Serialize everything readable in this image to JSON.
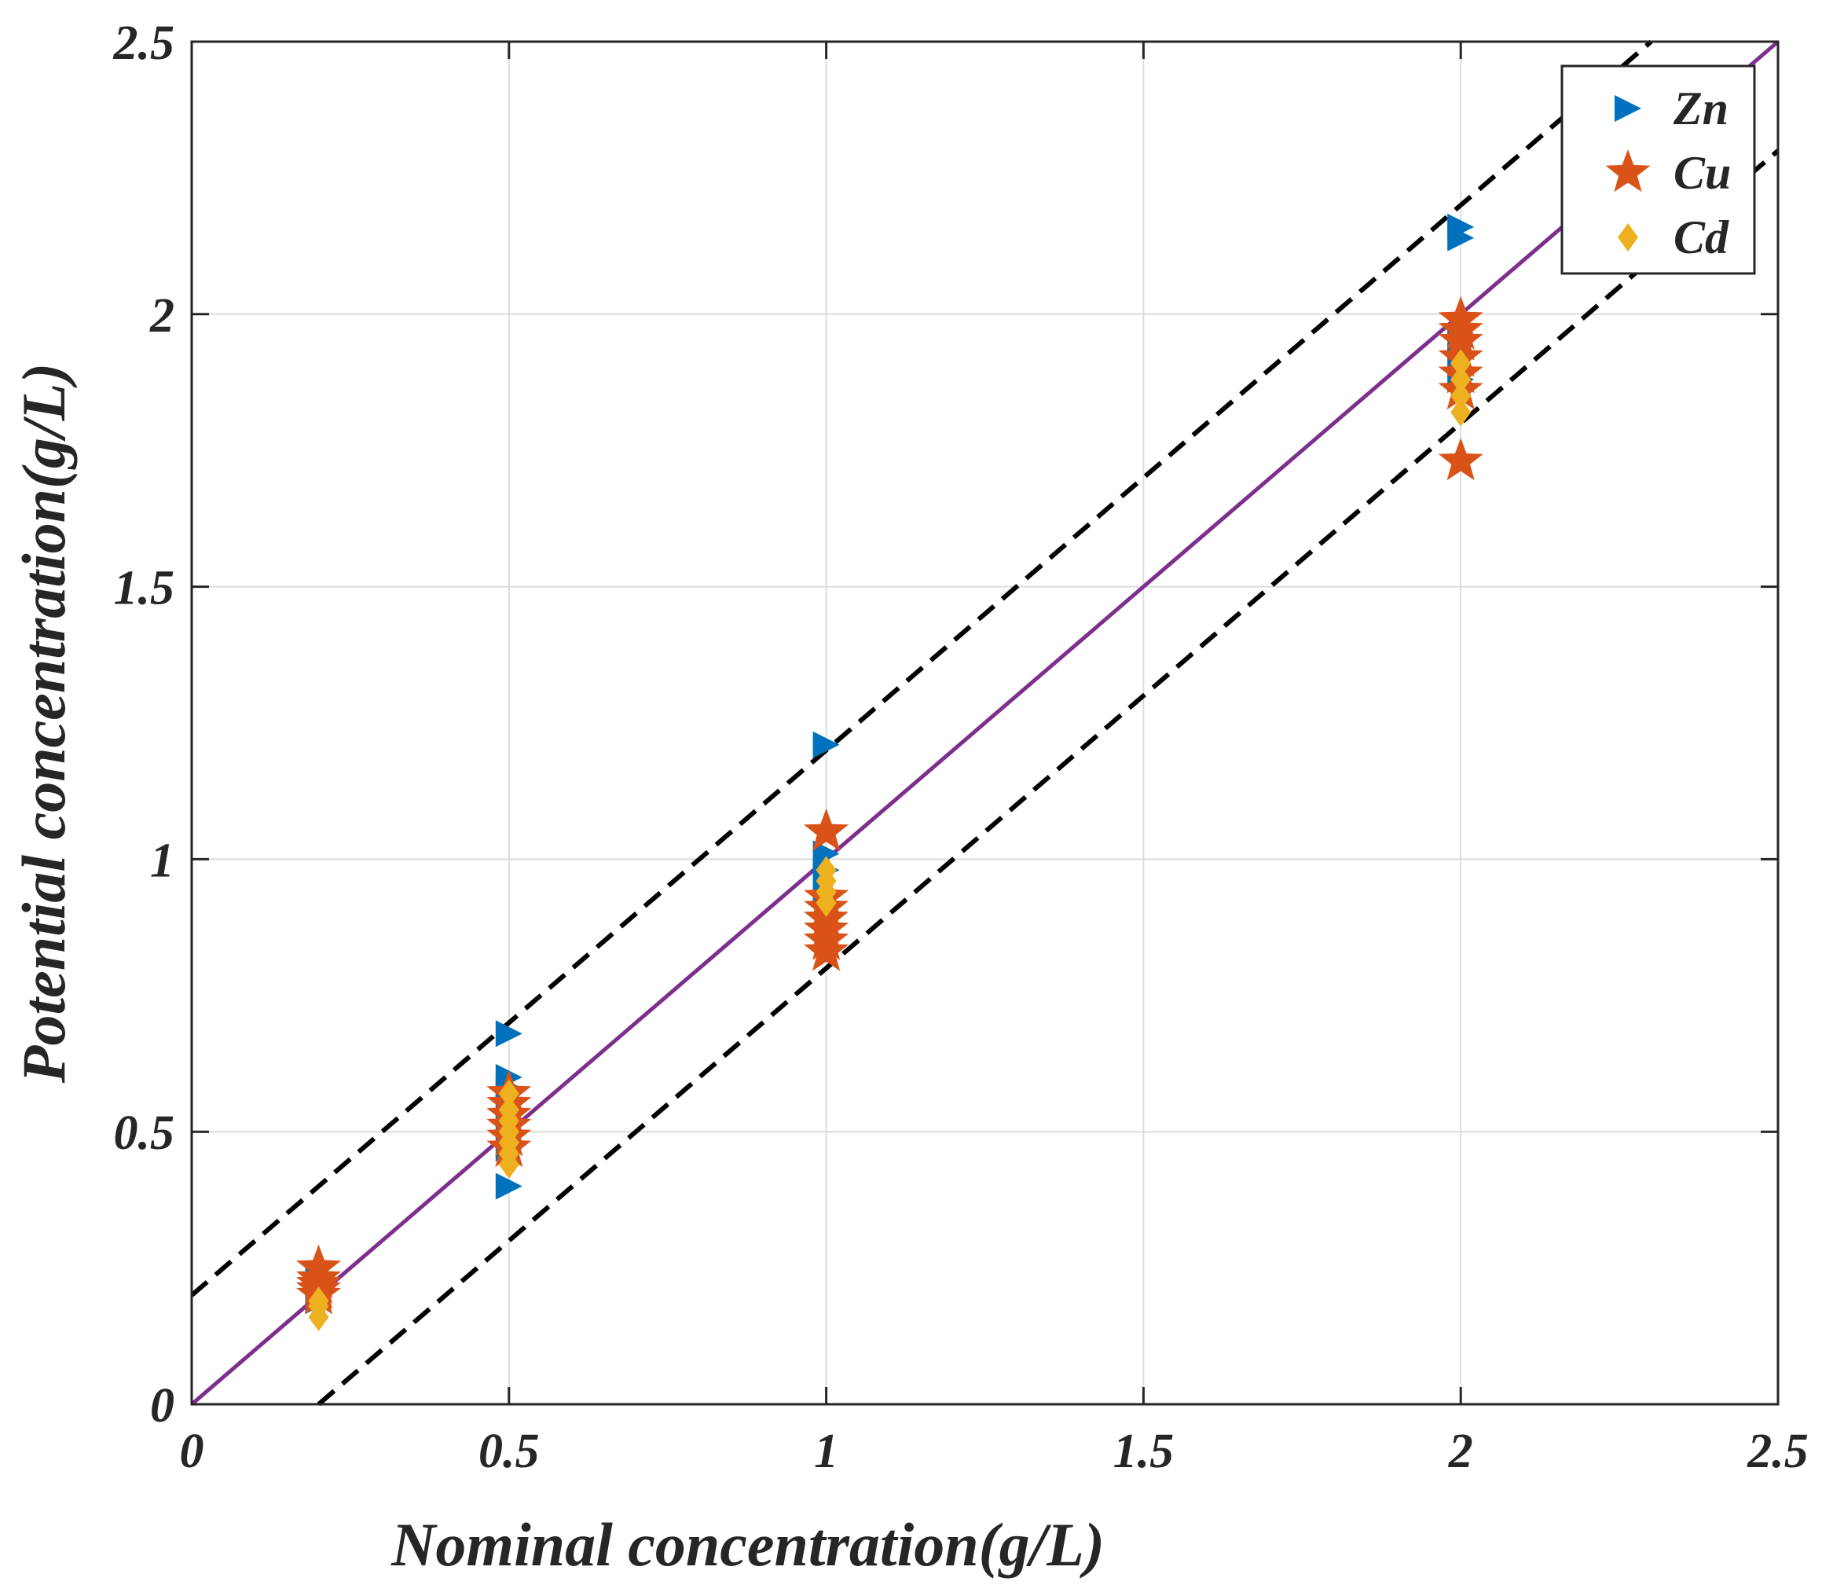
{
  "chart_data": {
    "type": "scatter",
    "title": "",
    "xlabel": "Nominal concentration(g/L)",
    "ylabel": "Potential concentration(g/L)",
    "xlim": [
      0,
      2.5
    ],
    "ylim": [
      0,
      2.5
    ],
    "grid": true,
    "x_ticks": [
      "0",
      "0.5",
      "1",
      "1.5",
      "2",
      "2.5"
    ],
    "y_ticks": [
      "0",
      "0.5",
      "1",
      "1.5",
      "2",
      "2.5"
    ],
    "legend_position": "top-right",
    "series": [
      {
        "name": "Zn",
        "marker": "triangle-right",
        "color": "#0072BD",
        "points": [
          [
            0.2,
            0.19
          ],
          [
            0.2,
            0.22
          ],
          [
            0.2,
            0.24
          ],
          [
            0.5,
            0.4
          ],
          [
            0.5,
            0.47
          ],
          [
            0.5,
            0.52
          ],
          [
            0.5,
            0.55
          ],
          [
            0.5,
            0.58
          ],
          [
            0.5,
            0.6
          ],
          [
            0.5,
            0.68
          ],
          [
            1.0,
            0.94
          ],
          [
            1.0,
            0.98
          ],
          [
            1.0,
            1.01
          ],
          [
            1.0,
            1.21
          ],
          [
            2.0,
            1.88
          ],
          [
            2.0,
            1.92
          ],
          [
            2.0,
            1.95
          ],
          [
            2.0,
            2.14
          ],
          [
            2.0,
            2.16
          ]
        ]
      },
      {
        "name": "Cu",
        "marker": "star",
        "color": "#D95319",
        "points": [
          [
            0.2,
            0.2
          ],
          [
            0.2,
            0.21
          ],
          [
            0.2,
            0.22
          ],
          [
            0.2,
            0.23
          ],
          [
            0.2,
            0.25
          ],
          [
            0.5,
            0.47
          ],
          [
            0.5,
            0.49
          ],
          [
            0.5,
            0.51
          ],
          [
            0.5,
            0.53
          ],
          [
            0.5,
            0.55
          ],
          [
            0.5,
            0.57
          ],
          [
            1.0,
            0.83
          ],
          [
            1.0,
            0.85
          ],
          [
            1.0,
            0.87
          ],
          [
            1.0,
            0.89
          ],
          [
            1.0,
            0.91
          ],
          [
            1.0,
            0.93
          ],
          [
            1.0,
            1.05
          ],
          [
            2.0,
            1.73
          ],
          [
            2.0,
            1.86
          ],
          [
            2.0,
            1.89
          ],
          [
            2.0,
            1.92
          ],
          [
            2.0,
            1.95
          ],
          [
            2.0,
            1.97
          ],
          [
            2.0,
            1.99
          ]
        ]
      },
      {
        "name": "Cd",
        "marker": "diamond",
        "color": "#EDB120",
        "points": [
          [
            0.2,
            0.16
          ],
          [
            0.2,
            0.18
          ],
          [
            0.2,
            0.19
          ],
          [
            0.5,
            0.44
          ],
          [
            0.5,
            0.46
          ],
          [
            0.5,
            0.48
          ],
          [
            0.5,
            0.5
          ],
          [
            0.5,
            0.52
          ],
          [
            0.5,
            0.54
          ],
          [
            0.5,
            0.57
          ],
          [
            1.0,
            0.92
          ],
          [
            1.0,
            0.94
          ],
          [
            1.0,
            0.96
          ],
          [
            1.0,
            0.98
          ],
          [
            2.0,
            1.82
          ],
          [
            2.0,
            1.85
          ],
          [
            2.0,
            1.88
          ],
          [
            2.0,
            1.91
          ]
        ]
      }
    ],
    "reference_lines": [
      {
        "name": "y = x",
        "style": "solid",
        "color": "#7E2F8E",
        "x": [
          0,
          2.5
        ],
        "y": [
          0,
          2.5
        ]
      },
      {
        "name": "y = x + 0.2",
        "style": "dashed",
        "color": "#000000",
        "x": [
          0,
          2.3
        ],
        "y": [
          0.2,
          2.5
        ]
      },
      {
        "name": "y = x - 0.2",
        "style": "dashed",
        "color": "#000000",
        "x": [
          0.2,
          2.5
        ],
        "y": [
          0,
          2.3
        ]
      }
    ]
  }
}
